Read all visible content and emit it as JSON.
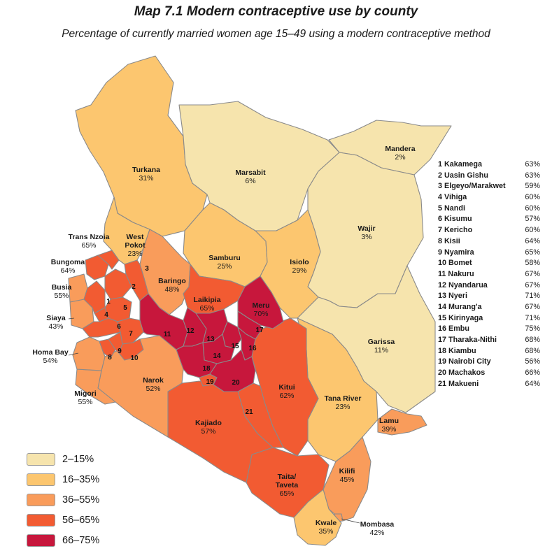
{
  "title": "Map 7.1  Modern contraceptive use by county",
  "subtitle": "Percentage of currently married women age 15–49 using a modern contraceptive method",
  "colors": {
    "band1": "#f6e4ad",
    "band2": "#fcc66f",
    "band3": "#f99c5b",
    "band4": "#f25b32",
    "band5": "#c7173c",
    "border": "#8a8a8a"
  },
  "legend": [
    {
      "label": "2–15%",
      "color": "#f6e4ad"
    },
    {
      "label": "16–35%",
      "color": "#fcc66f"
    },
    {
      "label": "36–55%",
      "color": "#f99c5b"
    },
    {
      "label": "56–65%",
      "color": "#f25b32"
    },
    {
      "label": "66–75%",
      "color": "#c7173c"
    }
  ],
  "labeled_counties": [
    {
      "name": "Turkana",
      "value": "31%"
    },
    {
      "name": "Marsabit",
      "value": "6%"
    },
    {
      "name": "Mandera",
      "value": "2%"
    },
    {
      "name": "Wajir",
      "value": "3%"
    },
    {
      "name": "Trans Nzoia",
      "value": "65%"
    },
    {
      "name": "West Pokot",
      "value": "23%"
    },
    {
      "name": "Samburu",
      "value": "25%"
    },
    {
      "name": "Isiolo",
      "value": "29%"
    },
    {
      "name": "Bungoma",
      "value": "64%"
    },
    {
      "name": "Baringo",
      "value": "48%"
    },
    {
      "name": "Busia",
      "value": "55%"
    },
    {
      "name": "Laikipia",
      "value": "65%"
    },
    {
      "name": "Meru",
      "value": "70%"
    },
    {
      "name": "Siaya",
      "value": "43%"
    },
    {
      "name": "Garissa",
      "value": "11%"
    },
    {
      "name": "Homa Bay",
      "value": "54%"
    },
    {
      "name": "Narok",
      "value": "52%"
    },
    {
      "name": "Migori",
      "value": "55%"
    },
    {
      "name": "Kitui",
      "value": "62%"
    },
    {
      "name": "Tana River",
      "value": "23%"
    },
    {
      "name": "Kajiado",
      "value": "57%"
    },
    {
      "name": "Lamu",
      "value": "39%"
    },
    {
      "name": "Kilifi",
      "value": "45%"
    },
    {
      "name": "Taita/ Taveta",
      "value": "65%"
    },
    {
      "name": "Kwale",
      "value": "35%"
    },
    {
      "name": "Mombasa",
      "value": "42%"
    }
  ],
  "numbered_counties": [
    {
      "num": "1",
      "name": "Kakamega",
      "value": "63%"
    },
    {
      "num": "2",
      "name": "Uasin Gishu",
      "value": "63%"
    },
    {
      "num": "3",
      "name": "Elgeyo/Marakwet",
      "value": "59%"
    },
    {
      "num": "4",
      "name": "Vihiga",
      "value": "60%"
    },
    {
      "num": "5",
      "name": "Nandi",
      "value": "60%"
    },
    {
      "num": "6",
      "name": "Kisumu",
      "value": "57%"
    },
    {
      "num": "7",
      "name": "Kericho",
      "value": "60%"
    },
    {
      "num": "8",
      "name": "Kisii",
      "value": "64%"
    },
    {
      "num": "9",
      "name": "Nyamira",
      "value": "65%"
    },
    {
      "num": "10",
      "name": "Bomet",
      "value": "58%"
    },
    {
      "num": "11",
      "name": "Nakuru",
      "value": "67%"
    },
    {
      "num": "12",
      "name": "Nyandarua",
      "value": "67%"
    },
    {
      "num": "13",
      "name": "Nyeri",
      "value": "71%"
    },
    {
      "num": "14",
      "name": "Murang'a",
      "value": "67%"
    },
    {
      "num": "15",
      "name": "Kirinyaga",
      "value": "71%"
    },
    {
      "num": "16",
      "name": "Embu",
      "value": "75%"
    },
    {
      "num": "17",
      "name": "Tharaka-Nithi",
      "value": "68%"
    },
    {
      "num": "18",
      "name": "Kiambu",
      "value": "68%"
    },
    {
      "num": "19",
      "name": "Nairobi City",
      "value": "56%"
    },
    {
      "num": "20",
      "name": "Machakos",
      "value": "66%"
    },
    {
      "num": "21",
      "name": "Makueni",
      "value": "64%"
    }
  ]
}
